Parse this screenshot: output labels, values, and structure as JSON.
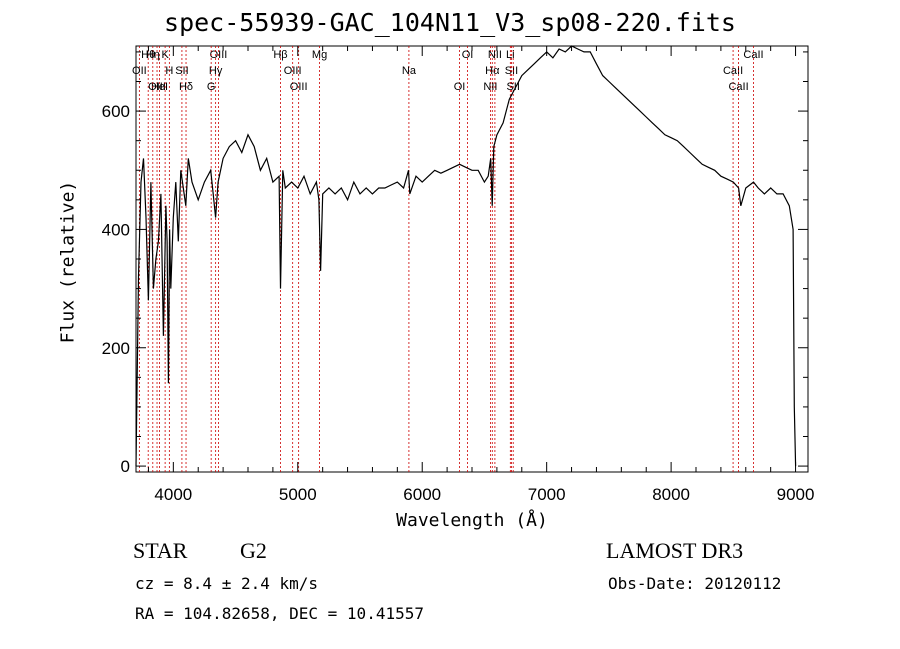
{
  "chart_data": {
    "type": "line",
    "title": "spec-55939-GAC_104N11_V3_sp08-220.fits",
    "xlabel": "Wavelength (Å)",
    "ylabel": "Flux (relative)",
    "xlim": [
      3700,
      9100
    ],
    "ylim": [
      -10,
      710
    ],
    "xticks": [
      4000,
      5000,
      6000,
      7000,
      8000,
      9000
    ],
    "yticks": [
      0,
      200,
      400,
      600
    ],
    "series": [
      {
        "name": "flux",
        "x": [
          3700,
          3720,
          3740,
          3760,
          3780,
          3800,
          3820,
          3840,
          3860,
          3880,
          3900,
          3920,
          3940,
          3950,
          3960,
          3970,
          3980,
          4000,
          4020,
          4040,
          4060,
          4080,
          4100,
          4120,
          4150,
          4200,
          4250,
          4300,
          4320,
          4340,
          4360,
          4380,
          4400,
          4450,
          4500,
          4550,
          4600,
          4650,
          4700,
          4750,
          4800,
          4850,
          4861,
          4880,
          4900,
          4950,
          5000,
          5050,
          5100,
          5150,
          5170,
          5183,
          5200,
          5250,
          5300,
          5350,
          5400,
          5450,
          5500,
          5550,
          5600,
          5650,
          5700,
          5750,
          5800,
          5850,
          5890,
          5900,
          5950,
          6000,
          6050,
          6100,
          6150,
          6200,
          6250,
          6300,
          6350,
          6400,
          6450,
          6500,
          6530,
          6550,
          6562,
          6575,
          6600,
          6650,
          6700,
          6750,
          6800,
          6850,
          6900,
          6950,
          7000,
          7050,
          7100,
          7150,
          7200,
          7250,
          7300,
          7350,
          7400,
          7450,
          7500,
          7550,
          7600,
          7650,
          7700,
          7750,
          7800,
          7850,
          7900,
          7950,
          8000,
          8050,
          8100,
          8150,
          8200,
          8250,
          8300,
          8350,
          8400,
          8450,
          8500,
          8542,
          8560,
          8600,
          8662,
          8700,
          8750,
          8800,
          8850,
          8900,
          8950,
          8980,
          8990,
          9000
        ],
        "y": [
          0,
          320,
          480,
          520,
          420,
          280,
          480,
          300,
          350,
          380,
          460,
          220,
          440,
          380,
          140,
          400,
          300,
          420,
          480,
          380,
          500,
          470,
          440,
          520,
          480,
          450,
          480,
          500,
          460,
          420,
          480,
          500,
          520,
          540,
          550,
          530,
          560,
          540,
          500,
          520,
          480,
          490,
          300,
          500,
          470,
          480,
          470,
          490,
          460,
          480,
          450,
          330,
          460,
          470,
          460,
          470,
          450,
          480,
          460,
          470,
          460,
          470,
          470,
          475,
          480,
          470,
          500,
          460,
          490,
          480,
          490,
          500,
          495,
          500,
          505,
          510,
          505,
          500,
          500,
          480,
          490,
          520,
          440,
          540,
          560,
          580,
          620,
          640,
          660,
          670,
          680,
          690,
          700,
          690,
          705,
          700,
          710,
          705,
          700,
          700,
          680,
          660,
          650,
          640,
          630,
          620,
          610,
          600,
          590,
          580,
          570,
          560,
          555,
          550,
          540,
          530,
          520,
          510,
          505,
          500,
          490,
          485,
          480,
          470,
          440,
          470,
          480,
          470,
          460,
          470,
          460,
          460,
          440,
          400,
          100,
          0
        ]
      }
    ],
    "lines": [
      {
        "label": "Hθ",
        "x": 3798
      },
      {
        "label": "OII",
        "x": 3727
      },
      {
        "label": "OIII",
        "x": 3869
      },
      {
        "label": "K",
        "x": 3934
      },
      {
        "label": "H",
        "x": 3968
      },
      {
        "label": "HeI",
        "x": 3889
      },
      {
        "label": "Hη",
        "x": 3835
      },
      {
        "label": "SII",
        "x": 4069
      },
      {
        "label": "Hδ",
        "x": 4102
      },
      {
        "label": "OIII",
        "x": 4363
      },
      {
        "label": "Hγ",
        "x": 4340
      },
      {
        "label": "G",
        "x": 4304
      },
      {
        "label": "Hβ",
        "x": 4861
      },
      {
        "label": "OIII",
        "x": 4959
      },
      {
        "label": "OIII",
        "x": 5007
      },
      {
        "label": "Mg",
        "x": 5175
      },
      {
        "label": "Na",
        "x": 5893
      },
      {
        "label": "OI",
        "x": 6300
      },
      {
        "label": "OI",
        "x": 6364
      },
      {
        "label": "Hα",
        "x": 6563
      },
      {
        "label": "NII",
        "x": 6548
      },
      {
        "label": "NII",
        "x": 6584
      },
      {
        "label": "SII",
        "x": 6717
      },
      {
        "label": "SII",
        "x": 6731
      },
      {
        "label": "Li",
        "x": 6708
      },
      {
        "label": "CaII",
        "x": 8498
      },
      {
        "label": "CaII",
        "x": 8542
      },
      {
        "label": "CaII",
        "x": 8662
      }
    ]
  },
  "info": {
    "object_class": "STAR",
    "subclass": "G2",
    "survey": "LAMOST DR3",
    "cz": "cz = 8.4 ± 2.4 km/s",
    "obs_date": "Obs-Date: 20120112",
    "coords": "RA = 104.82658, DEC =  10.41557"
  },
  "colors": {
    "line": "#000000",
    "marker": "#cc0000"
  }
}
